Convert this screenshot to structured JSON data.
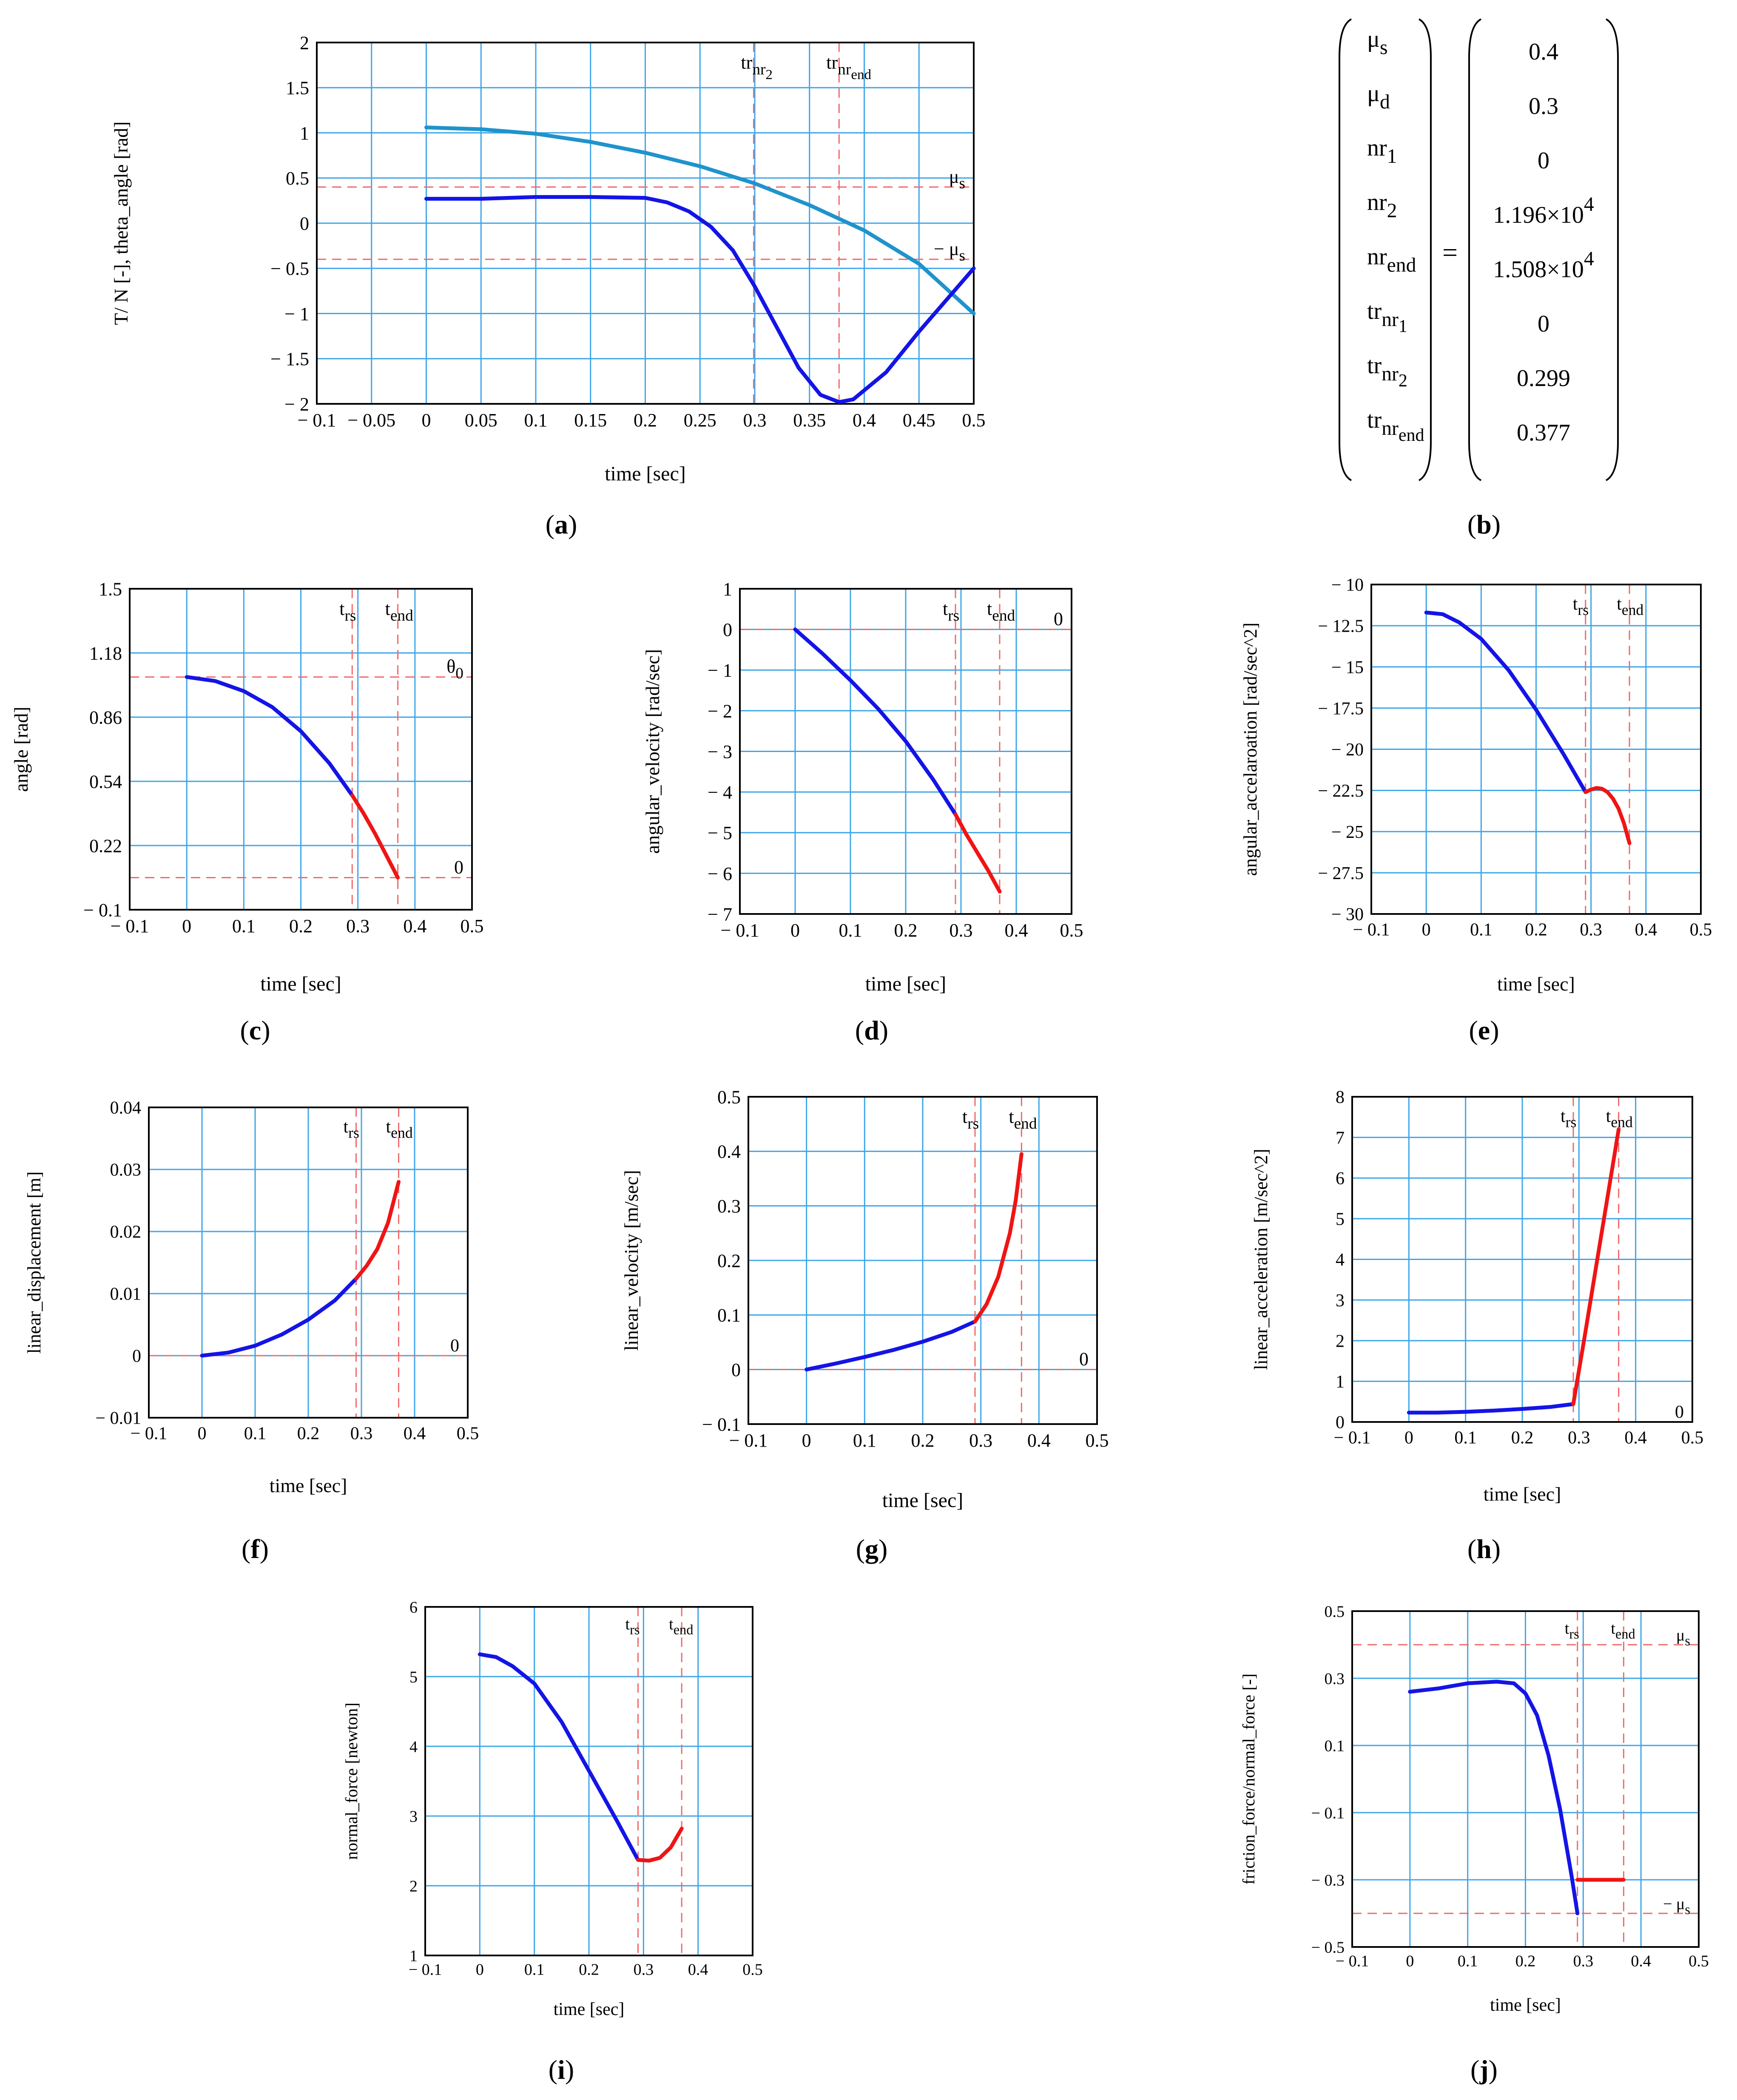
{
  "colors": {
    "grid": "#3ea6e8",
    "blue": "#1414e6",
    "lightblue": "#1f93cc",
    "red": "#f01414",
    "refline": "#f06a6a",
    "frame": "#000000"
  },
  "chart_data": [
    {
      "id": "a",
      "type": "line",
      "caption": "a",
      "xlabel": "time [sec]",
      "ylabel": "T/ N [-], theta_angle [rad]",
      "xlim": [
        -0.1,
        0.5
      ],
      "ylim": [
        -2,
        2
      ],
      "xticks": [
        -0.1,
        -0.05,
        0,
        0.05,
        0.1,
        0.15,
        0.2,
        0.25,
        0.3,
        0.35,
        0.4,
        0.45,
        0.5
      ],
      "xtick_labels": [
        "− 0.1",
        "− 0.05",
        "0",
        "0.05",
        "0.1",
        "0.15",
        "0.2",
        "0.25",
        "0.3",
        "0.35",
        "0.4",
        "0.45",
        "0.5"
      ],
      "yticks": [
        -2,
        -1.5,
        -1,
        -0.5,
        0,
        0.5,
        1,
        1.5,
        2
      ],
      "ytick_labels": [
        "− 2",
        "− 1.5",
        "− 1",
        "− 0.5",
        "0",
        "0.5",
        "1",
        "1.5",
        "2"
      ],
      "series": [
        {
          "name": "theta_angle",
          "color": "lightblue",
          "x": [
            0,
            0.05,
            0.1,
            0.15,
            0.2,
            0.25,
            0.3,
            0.35,
            0.4,
            0.45,
            0.5
          ],
          "y": [
            1.06,
            1.04,
            0.99,
            0.9,
            0.78,
            0.63,
            0.44,
            0.2,
            -0.08,
            -0.45,
            -1.0
          ]
        },
        {
          "name": "T/N",
          "color": "blue",
          "x": [
            0,
            0.05,
            0.1,
            0.15,
            0.2,
            0.22,
            0.24,
            0.26,
            0.28,
            0.3,
            0.32,
            0.34,
            0.36,
            0.377,
            0.39,
            0.42,
            0.45,
            0.48,
            0.5
          ],
          "y": [
            0.27,
            0.27,
            0.29,
            0.29,
            0.28,
            0.23,
            0.13,
            -0.04,
            -0.3,
            -0.7,
            -1.15,
            -1.6,
            -1.9,
            -1.98,
            -1.95,
            -1.65,
            -1.2,
            -0.78,
            -0.5
          ]
        }
      ],
      "hlines": [
        {
          "y": 0.4,
          "label": "μ s"
        },
        {
          "y": -0.4,
          "label": "− μ s"
        }
      ],
      "vlines": [
        {
          "x": 0.299,
          "label": "tr nr2"
        },
        {
          "x": 0.377,
          "label": "tr nrend"
        }
      ]
    },
    {
      "id": "c",
      "type": "line",
      "caption": "c",
      "xlabel": "time [sec]",
      "ylabel": "angle [rad]",
      "xlim": [
        -0.1,
        0.5
      ],
      "ylim": [
        -0.1,
        1.5
      ],
      "xticks": [
        -0.1,
        0,
        0.1,
        0.2,
        0.3,
        0.4,
        0.5
      ],
      "xtick_labels": [
        "− 0.1",
        "0",
        "0.1",
        "0.2",
        "0.3",
        "0.4",
        "0.5"
      ],
      "yticks": [
        -0.1,
        0.22,
        0.54,
        0.86,
        1.18,
        1.5
      ],
      "ytick_labels": [
        "− 0.1",
        "0.22",
        "0.54",
        "0.86",
        "1.18",
        "1.5"
      ],
      "series": [
        {
          "name": "before",
          "color": "blue",
          "x": [
            0,
            0.05,
            0.1,
            0.15,
            0.2,
            0.25,
            0.29
          ],
          "y": [
            1.06,
            1.04,
            0.99,
            0.91,
            0.79,
            0.63,
            0.47
          ]
        },
        {
          "name": "after",
          "color": "red",
          "x": [
            0.29,
            0.31,
            0.33,
            0.35,
            0.37
          ],
          "y": [
            0.47,
            0.38,
            0.28,
            0.17,
            0.06
          ]
        }
      ],
      "hlines": [
        {
          "y": 1.06,
          "label": "θ 0"
        },
        {
          "y": 0.06,
          "label": "0"
        }
      ],
      "vlines": [
        {
          "x": 0.29,
          "label": "t rs"
        },
        {
          "x": 0.37,
          "label": "t end"
        }
      ]
    },
    {
      "id": "d",
      "type": "line",
      "caption": "d",
      "xlabel": "time [sec]",
      "ylabel": "angular_velocity [rad/sec]",
      "xlim": [
        -0.1,
        0.5
      ],
      "ylim": [
        -7,
        1
      ],
      "xticks": [
        -0.1,
        0,
        0.1,
        0.2,
        0.3,
        0.4,
        0.5
      ],
      "xtick_labels": [
        "− 0.1",
        "0",
        "0.1",
        "0.2",
        "0.3",
        "0.4",
        "0.5"
      ],
      "yticks": [
        -7,
        -6,
        -5,
        -4,
        -3,
        -2,
        -1,
        0,
        1
      ],
      "ytick_labels": [
        "− 7",
        "− 6",
        "− 5",
        "− 4",
        "− 3",
        "− 2",
        "− 1",
        "0",
        "1"
      ],
      "series": [
        {
          "name": "before",
          "color": "blue",
          "x": [
            0,
            0.05,
            0.1,
            0.15,
            0.2,
            0.25,
            0.29
          ],
          "y": [
            0,
            -0.6,
            -1.25,
            -1.95,
            -2.75,
            -3.7,
            -4.55
          ]
        },
        {
          "name": "after",
          "color": "red",
          "x": [
            0.29,
            0.31,
            0.33,
            0.35,
            0.37
          ],
          "y": [
            -4.55,
            -5.05,
            -5.5,
            -5.95,
            -6.45
          ]
        }
      ],
      "hlines": [
        {
          "y": 0,
          "label": "0"
        }
      ],
      "vlines": [
        {
          "x": 0.29,
          "label": "t rs"
        },
        {
          "x": 0.37,
          "label": "t end"
        }
      ]
    },
    {
      "id": "e",
      "type": "line",
      "caption": "e",
      "xlabel": "time [sec]",
      "ylabel": "angular_accelaroation [rad/sec^2]",
      "xlim": [
        -0.1,
        0.5
      ],
      "ylim": [
        -30,
        -10
      ],
      "xticks": [
        -0.1,
        0,
        0.1,
        0.2,
        0.3,
        0.4,
        0.5
      ],
      "xtick_labels": [
        "− 0.1",
        "0",
        "0.1",
        "0.2",
        "0.3",
        "0.4",
        "0.5"
      ],
      "yticks": [
        -30,
        -27.5,
        -25,
        -22.5,
        -20,
        -17.5,
        -15,
        -12.5,
        -10
      ],
      "ytick_labels": [
        "− 30",
        "− 27.5",
        "− 25",
        "− 22.5",
        "− 20",
        "− 17.5",
        "− 15",
        "− 12.5",
        "− 10"
      ],
      "series": [
        {
          "name": "before",
          "color": "blue",
          "x": [
            0,
            0.03,
            0.06,
            0.1,
            0.15,
            0.2,
            0.25,
            0.29
          ],
          "y": [
            -11.7,
            -11.8,
            -12.3,
            -13.3,
            -15.2,
            -17.6,
            -20.3,
            -22.6
          ]
        },
        {
          "name": "after",
          "color": "red",
          "x": [
            0.29,
            0.3,
            0.31,
            0.32,
            0.33,
            0.34,
            0.35,
            0.36,
            0.37
          ],
          "y": [
            -22.6,
            -22.45,
            -22.35,
            -22.4,
            -22.6,
            -23.0,
            -23.6,
            -24.5,
            -25.7
          ]
        }
      ],
      "hlines": [],
      "vlines": [
        {
          "x": 0.29,
          "label": "t rs"
        },
        {
          "x": 0.37,
          "label": "t end"
        }
      ]
    },
    {
      "id": "f",
      "type": "line",
      "caption": "f",
      "xlabel": "time [sec]",
      "ylabel": "linear_displacement [m]",
      "xlim": [
        -0.1,
        0.5
      ],
      "ylim": [
        -0.01,
        0.04
      ],
      "xticks": [
        -0.1,
        0,
        0.1,
        0.2,
        0.3,
        0.4,
        0.5
      ],
      "xtick_labels": [
        "− 0.1",
        "0",
        "0.1",
        "0.2",
        "0.3",
        "0.4",
        "0.5"
      ],
      "yticks": [
        -0.01,
        0,
        0.01,
        0.02,
        0.03,
        0.04
      ],
      "ytick_labels": [
        "− 0.01",
        "0",
        "0.01",
        "0.02",
        "0.03",
        "0.04"
      ],
      "series": [
        {
          "name": "before",
          "color": "blue",
          "x": [
            0,
            0.05,
            0.1,
            0.15,
            0.2,
            0.25,
            0.29
          ],
          "y": [
            0,
            0.0005,
            0.0016,
            0.0034,
            0.0058,
            0.0089,
            0.0124
          ]
        },
        {
          "name": "after",
          "color": "red",
          "x": [
            0.29,
            0.31,
            0.33,
            0.35,
            0.37
          ],
          "y": [
            0.0124,
            0.0145,
            0.0172,
            0.0214,
            0.028
          ]
        }
      ],
      "hlines": [
        {
          "y": 0,
          "label": "0"
        }
      ],
      "vlines": [
        {
          "x": 0.29,
          "label": "t rs"
        },
        {
          "x": 0.37,
          "label": "t end"
        }
      ]
    },
    {
      "id": "g",
      "type": "line",
      "caption": "g",
      "xlabel": "time [sec]",
      "ylabel": "linear_velocity [m/sec]",
      "xlim": [
        -0.1,
        0.5
      ],
      "ylim": [
        -0.1,
        0.5
      ],
      "xticks": [
        -0.1,
        0,
        0.1,
        0.2,
        0.3,
        0.4,
        0.5
      ],
      "xtick_labels": [
        "− 0.1",
        "0",
        "0.1",
        "0.2",
        "0.3",
        "0.4",
        "0.5"
      ],
      "yticks": [
        -0.1,
        0,
        0.1,
        0.2,
        0.3,
        0.4,
        0.5
      ],
      "ytick_labels": [
        "− 0.1",
        "0",
        "0.1",
        "0.2",
        "0.3",
        "0.4",
        "0.5"
      ],
      "series": [
        {
          "name": "before",
          "color": "blue",
          "x": [
            0,
            0.05,
            0.1,
            0.15,
            0.2,
            0.25,
            0.29
          ],
          "y": [
            0,
            0.011,
            0.023,
            0.036,
            0.051,
            0.069,
            0.088
          ]
        },
        {
          "name": "after",
          "color": "red",
          "x": [
            0.29,
            0.31,
            0.33,
            0.35,
            0.36,
            0.37
          ],
          "y": [
            0.088,
            0.12,
            0.17,
            0.25,
            0.31,
            0.395
          ]
        }
      ],
      "hlines": [
        {
          "y": 0,
          "label": "0"
        }
      ],
      "vlines": [
        {
          "x": 0.29,
          "label": "t rs"
        },
        {
          "x": 0.37,
          "label": "t end"
        }
      ]
    },
    {
      "id": "h",
      "type": "line",
      "caption": "h",
      "xlabel": "time [sec]",
      "ylabel": "linear_acceleration [m/sec^2]",
      "xlim": [
        -0.1,
        0.5
      ],
      "ylim": [
        0,
        8
      ],
      "xticks": [
        -0.1,
        0,
        0.1,
        0.2,
        0.3,
        0.4,
        0.5
      ],
      "xtick_labels": [
        "− 0.1",
        "0",
        "0.1",
        "0.2",
        "0.3",
        "0.4",
        "0.5"
      ],
      "yticks": [
        0,
        1,
        2,
        3,
        4,
        5,
        6,
        7,
        8
      ],
      "ytick_labels": [
        "0",
        "1",
        "2",
        "3",
        "4",
        "5",
        "6",
        "7",
        "8"
      ],
      "series": [
        {
          "name": "before",
          "color": "blue",
          "x": [
            0,
            0.05,
            0.1,
            0.15,
            0.2,
            0.25,
            0.29
          ],
          "y": [
            0.23,
            0.23,
            0.25,
            0.28,
            0.32,
            0.37,
            0.44
          ]
        },
        {
          "name": "after",
          "color": "red",
          "x": [
            0.29,
            0.31,
            0.33,
            0.35,
            0.37
          ],
          "y": [
            0.44,
            2.1,
            3.8,
            5.5,
            7.2
          ]
        }
      ],
      "hlines": [
        {
          "y": 0,
          "label": "0"
        }
      ],
      "vlines": [
        {
          "x": 0.29,
          "label": "t rs"
        },
        {
          "x": 0.37,
          "label": "t end"
        }
      ]
    },
    {
      "id": "i",
      "type": "line",
      "caption": "i",
      "xlabel": "time [sec]",
      "ylabel": "normal_force [newton]",
      "xlim": [
        -0.1,
        0.5
      ],
      "ylim": [
        1,
        6
      ],
      "xticks": [
        -0.1,
        0,
        0.1,
        0.2,
        0.3,
        0.4,
        0.5
      ],
      "xtick_labels": [
        "− 0.1",
        "0",
        "0.1",
        "0.2",
        "0.3",
        "0.4",
        "0.5"
      ],
      "yticks": [
        1,
        2,
        3,
        4,
        5,
        6
      ],
      "ytick_labels": [
        "1",
        "2",
        "3",
        "4",
        "5",
        "6"
      ],
      "series": [
        {
          "name": "before",
          "color": "blue",
          "x": [
            0,
            0.03,
            0.06,
            0.1,
            0.15,
            0.2,
            0.25,
            0.29
          ],
          "y": [
            5.32,
            5.28,
            5.15,
            4.9,
            4.35,
            3.65,
            2.95,
            2.37
          ]
        },
        {
          "name": "after",
          "color": "red",
          "x": [
            0.29,
            0.31,
            0.33,
            0.35,
            0.37
          ],
          "y": [
            2.37,
            2.36,
            2.4,
            2.55,
            2.82
          ]
        }
      ],
      "hlines": [],
      "vlines": [
        {
          "x": 0.29,
          "label": "t rs"
        },
        {
          "x": 0.37,
          "label": "t end"
        }
      ]
    },
    {
      "id": "j",
      "type": "line",
      "caption": "j",
      "xlabel": "time [sec]",
      "ylabel": "friction_force/normal_force [-]",
      "xlim": [
        -0.1,
        0.5
      ],
      "ylim": [
        -0.5,
        0.5
      ],
      "xticks": [
        -0.1,
        0,
        0.1,
        0.2,
        0.3,
        0.4,
        0.5
      ],
      "xtick_labels": [
        "− 0.1",
        "0",
        "0.1",
        "0.2",
        "0.3",
        "0.4",
        "0.5"
      ],
      "yticks": [
        -0.5,
        -0.3,
        -0.1,
        0.1,
        0.3,
        0.5
      ],
      "ytick_labels": [
        "− 0.5",
        "− 0.3",
        "− 0.1",
        "0.1",
        "0.3",
        "0.5"
      ],
      "series": [
        {
          "name": "before",
          "color": "blue",
          "x": [
            0,
            0.05,
            0.1,
            0.15,
            0.18,
            0.2,
            0.22,
            0.24,
            0.26,
            0.27,
            0.28,
            0.29
          ],
          "y": [
            0.26,
            0.27,
            0.285,
            0.29,
            0.285,
            0.255,
            0.19,
            0.07,
            -0.09,
            -0.19,
            -0.29,
            -0.4
          ]
        },
        {
          "name": "after",
          "color": "red",
          "x": [
            0.29,
            0.37
          ],
          "y": [
            -0.3,
            -0.3
          ]
        }
      ],
      "hlines": [
        {
          "y": 0.4,
          "label": "μ s"
        },
        {
          "y": -0.4,
          "label": "− μ s"
        }
      ],
      "vlines": [
        {
          "x": 0.29,
          "label": "t rs"
        },
        {
          "x": 0.37,
          "label": "t end"
        }
      ]
    }
  ],
  "matrix_b": {
    "caption": "b",
    "equals": "=",
    "rows": [
      {
        "name": "μ s",
        "value": "0.4"
      },
      {
        "name": "μ d",
        "value": "0.3"
      },
      {
        "name": "nr 1",
        "value": "0"
      },
      {
        "name": "nr 2",
        "value": "1.196× 10 4"
      },
      {
        "name": "nr end",
        "value": "1.508× 10 4"
      },
      {
        "name": "tr nr1",
        "value": "0"
      },
      {
        "name": "tr nr2",
        "value": "0.299"
      },
      {
        "name": "tr nrend",
        "value": "0.377"
      }
    ]
  }
}
